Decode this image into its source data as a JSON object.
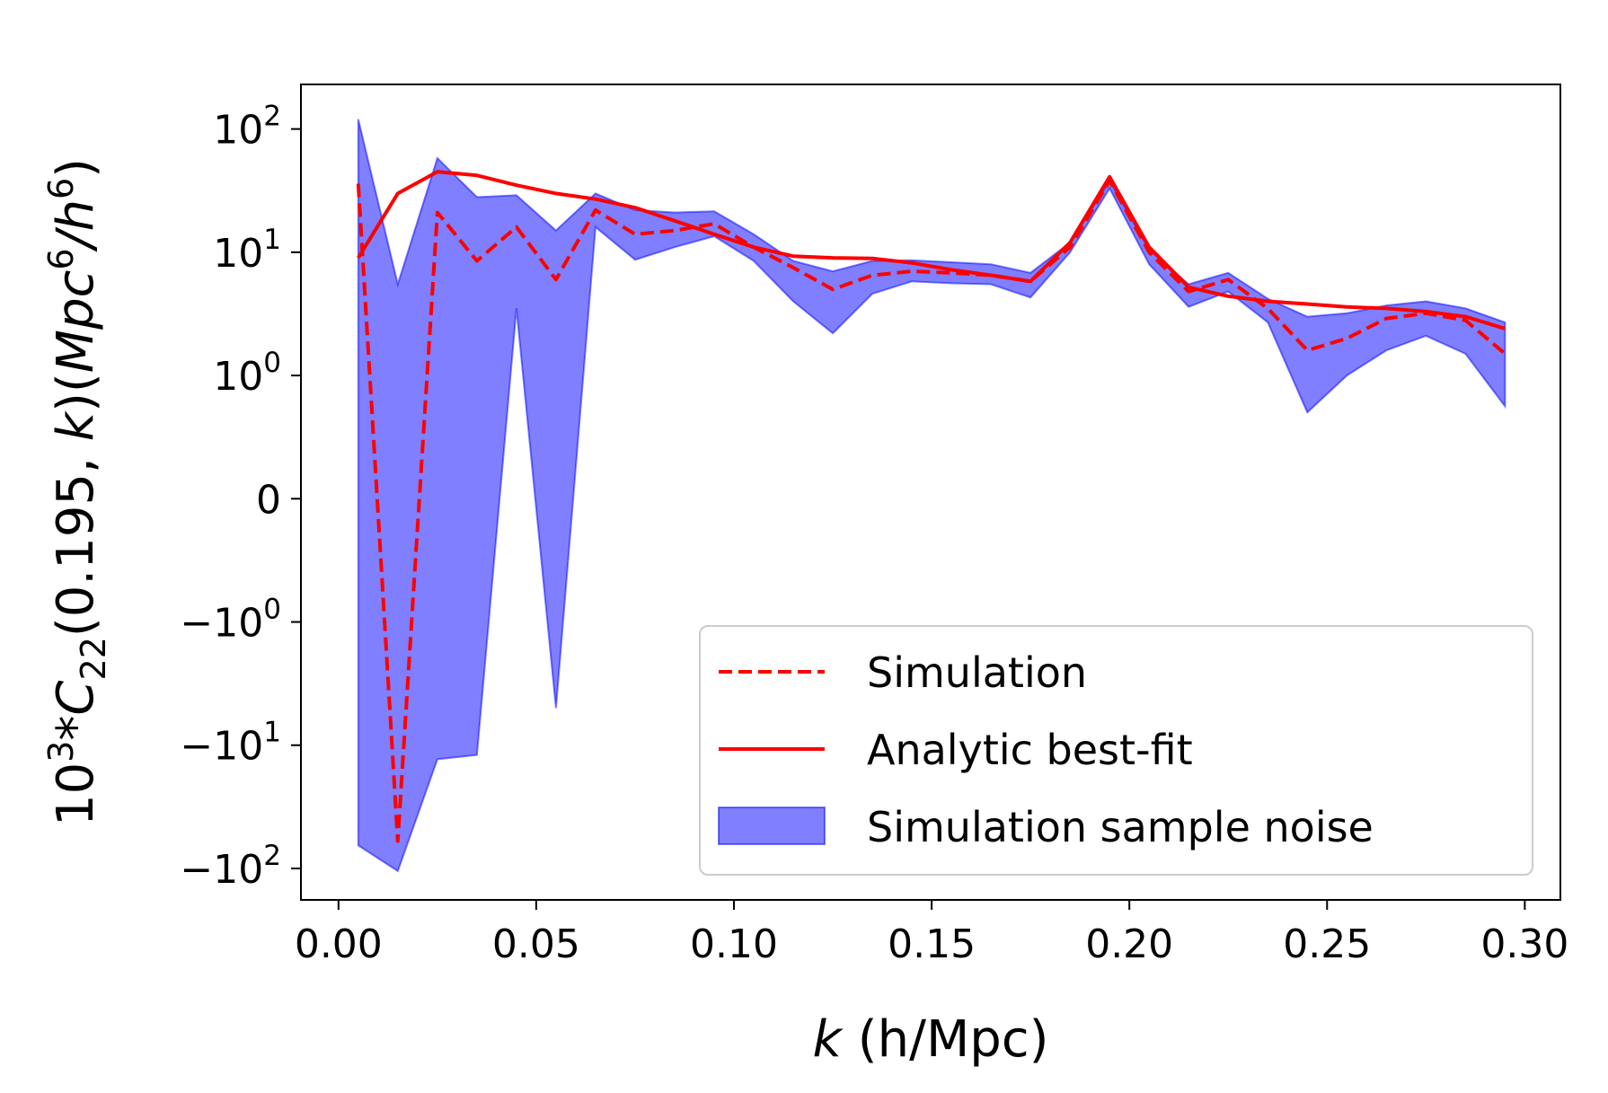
{
  "chart_data": {
    "type": "line",
    "xlabel_italic": "k",
    "xlabel_rest": " (h/Mpc)",
    "ylabel": {
      "prefix": "10",
      "prefix_sup": "3",
      "star": "*",
      "symbol": "C",
      "symbol_sub": "22",
      "args_open": "(0.195, ",
      "args_k": "k",
      "args_close": ")(",
      "unit_m": "Mpc",
      "unit_m_sup": "6",
      "unit_slash": "/",
      "unit_h": "h",
      "unit_h_sup": "6",
      "unit_close": ")"
    },
    "xlim": [
      -0.0095,
      0.309
    ],
    "ylim": [
      -180,
      230
    ],
    "yscale": "symlog",
    "linthresh": 1,
    "xticks": [
      {
        "value": 0.0,
        "label": "0.00"
      },
      {
        "value": 0.05,
        "label": "0.05"
      },
      {
        "value": 0.1,
        "label": "0.10"
      },
      {
        "value": 0.15,
        "label": "0.15"
      },
      {
        "value": 0.2,
        "label": "0.20"
      },
      {
        "value": 0.25,
        "label": "0.25"
      },
      {
        "value": 0.3,
        "label": "0.30"
      }
    ],
    "yticks": [
      {
        "value": 100,
        "base": "10",
        "exp": "2",
        "sign": ""
      },
      {
        "value": 10,
        "base": "10",
        "exp": "1",
        "sign": ""
      },
      {
        "value": 1,
        "base": "10",
        "exp": "0",
        "sign": ""
      },
      {
        "value": 0,
        "base": "0",
        "exp": "",
        "sign": ""
      },
      {
        "value": -1,
        "base": "10",
        "exp": "0",
        "sign": "−"
      },
      {
        "value": -10,
        "base": "10",
        "exp": "1",
        "sign": "−"
      },
      {
        "value": -100,
        "base": "10",
        "exp": "2",
        "sign": "−"
      }
    ],
    "x": [
      0.005,
      0.015,
      0.025,
      0.035,
      0.045,
      0.055,
      0.065,
      0.075,
      0.085,
      0.095,
      0.105,
      0.115,
      0.125,
      0.135,
      0.145,
      0.155,
      0.165,
      0.175,
      0.185,
      0.195,
      0.205,
      0.215,
      0.225,
      0.235,
      0.245,
      0.255,
      0.265,
      0.275,
      0.285,
      0.295
    ],
    "series": [
      {
        "name": "Simulation",
        "style": "dashed",
        "color": "#ff0000",
        "values": [
          36,
          -60,
          21,
          8.5,
          16,
          6.0,
          22,
          14,
          15,
          17,
          11,
          7.5,
          5.0,
          6.5,
          7.0,
          6.8,
          6.5,
          5.8,
          11,
          38,
          10,
          4.8,
          6.0,
          3.5,
          1.6,
          2.0,
          2.9,
          3.2,
          2.8,
          1.5
        ]
      },
      {
        "name": "Analytic best-fit",
        "style": "solid",
        "color": "#ff0000",
        "values": [
          9.0,
          30,
          45,
          42,
          35,
          30,
          27,
          23,
          18,
          14,
          11,
          9.3,
          9.0,
          8.9,
          8.2,
          7.2,
          6.5,
          5.8,
          12,
          41,
          11,
          5.2,
          4.4,
          4.0,
          3.8,
          3.6,
          3.5,
          3.3,
          3.0,
          2.4
        ]
      }
    ],
    "band": {
      "name": "Simulation sample noise",
      "color": "#0000ff",
      "alpha": 0.5,
      "upper": [
        120,
        5.5,
        58,
        28,
        29,
        15,
        30,
        22,
        21,
        21.5,
        14,
        8.5,
        7.0,
        8.5,
        8.6,
        8.3,
        8.0,
        6.8,
        12,
        38,
        10.5,
        5.5,
        6.8,
        4.2,
        3.0,
        3.2,
        3.7,
        4.0,
        3.5,
        2.7
      ],
      "lower": [
        -65,
        -105,
        -13,
        -12,
        3.5,
        -5,
        16,
        8.7,
        11,
        13.5,
        8.5,
        4.0,
        2.2,
        4.6,
        5.8,
        5.6,
        5.5,
        4.3,
        10,
        33,
        8.0,
        3.6,
        4.8,
        2.7,
        0.7,
        1.0,
        1.6,
        2.1,
        1.5,
        0.75
      ]
    },
    "legend_position": "lower right",
    "legend_entries": [
      "Simulation",
      "Analytic best-fit",
      "Simulation sample noise"
    ]
  }
}
